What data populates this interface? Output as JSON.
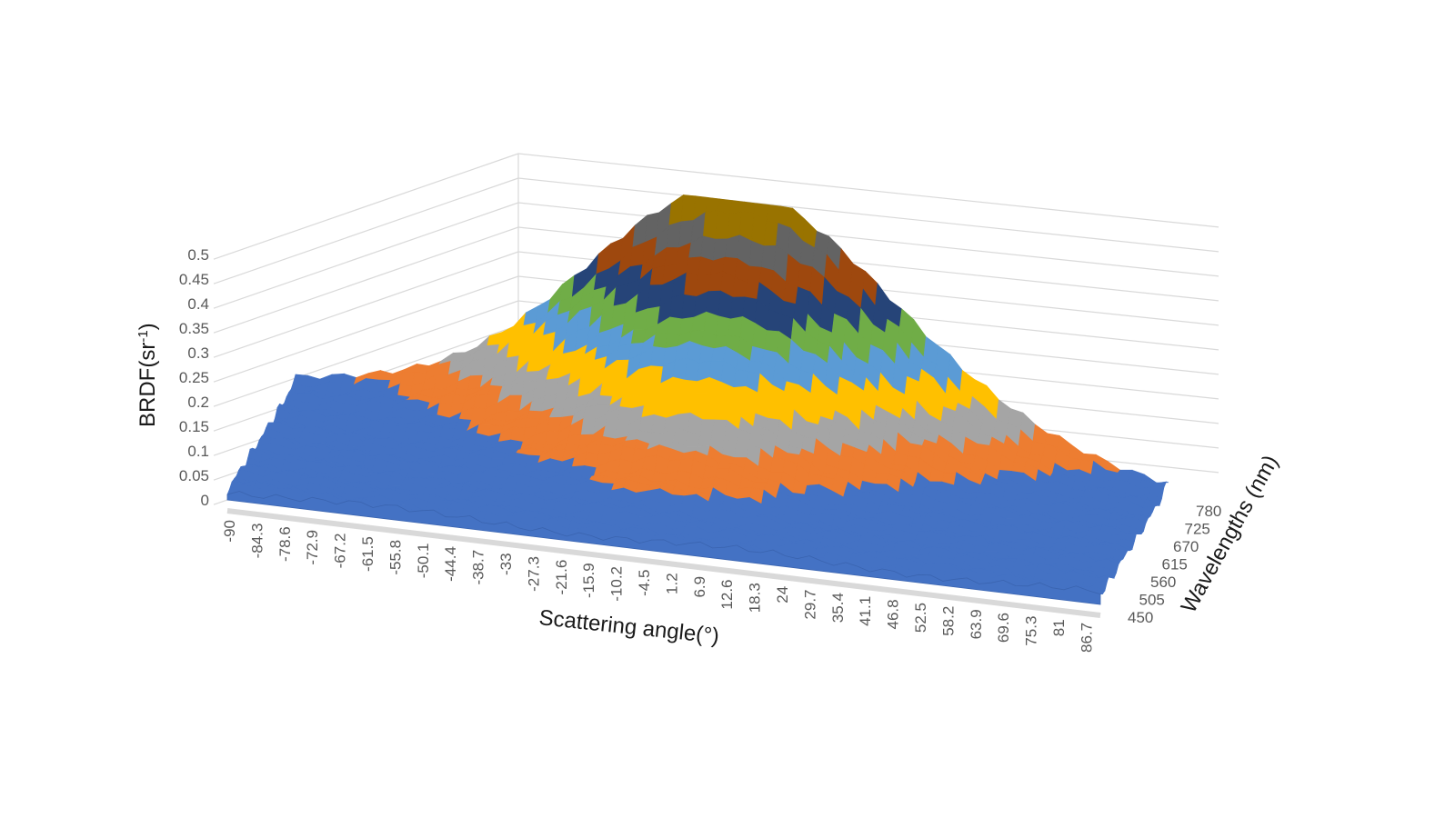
{
  "chart_data": {
    "type": "surface",
    "ylabel": "BRDF(sr",
    "ylabel_sup": "-1",
    "ylabel_end": ")",
    "xlabel": "Scattering angle(°)",
    "zlabel": "Wavelengths (nm)",
    "z_ticks": [
      "0",
      "0.05",
      "0.1",
      "0.15",
      "0.2",
      "0.25",
      "0.3",
      "0.35",
      "0.4",
      "0.45",
      "0.5"
    ],
    "x_ticks": [
      "-90",
      "-84.3",
      "-78.6",
      "-72.9",
      "-67.2",
      "-61.5",
      "-55.8",
      "-50.1",
      "-44.4",
      "-38.7",
      "-33",
      "-27.3",
      "-21.6",
      "-15.9",
      "-10.2",
      "-4.5",
      "1.2",
      "6.9",
      "12.6",
      "18.3",
      "24",
      "29.7",
      "35.4",
      "41.1",
      "46.8",
      "52.5",
      "58.2",
      "63.9",
      "69.6",
      "75.3",
      "81",
      "86.7"
    ],
    "y_ticks": [
      "450",
      "505",
      "560",
      "615",
      "670",
      "725",
      "780"
    ],
    "zlim": [
      0,
      0.5
    ],
    "xlim": [
      -90,
      90
    ],
    "ylim": [
      450,
      780
    ],
    "band_step": 0.05,
    "band_colors": [
      "#4472c4",
      "#ed7d31",
      "#a5a5a5",
      "#ffc000",
      "#5b9bd5",
      "#70ad47",
      "#264478",
      "#9e480e",
      "#636363",
      "#997300"
    ],
    "peak": {
      "angle": 2,
      "wavelength": 780,
      "brdf": 0.5
    },
    "ridge": {
      "angle_at_450nm": -8,
      "angle_at_780nm": 2
    },
    "grid": true
  }
}
